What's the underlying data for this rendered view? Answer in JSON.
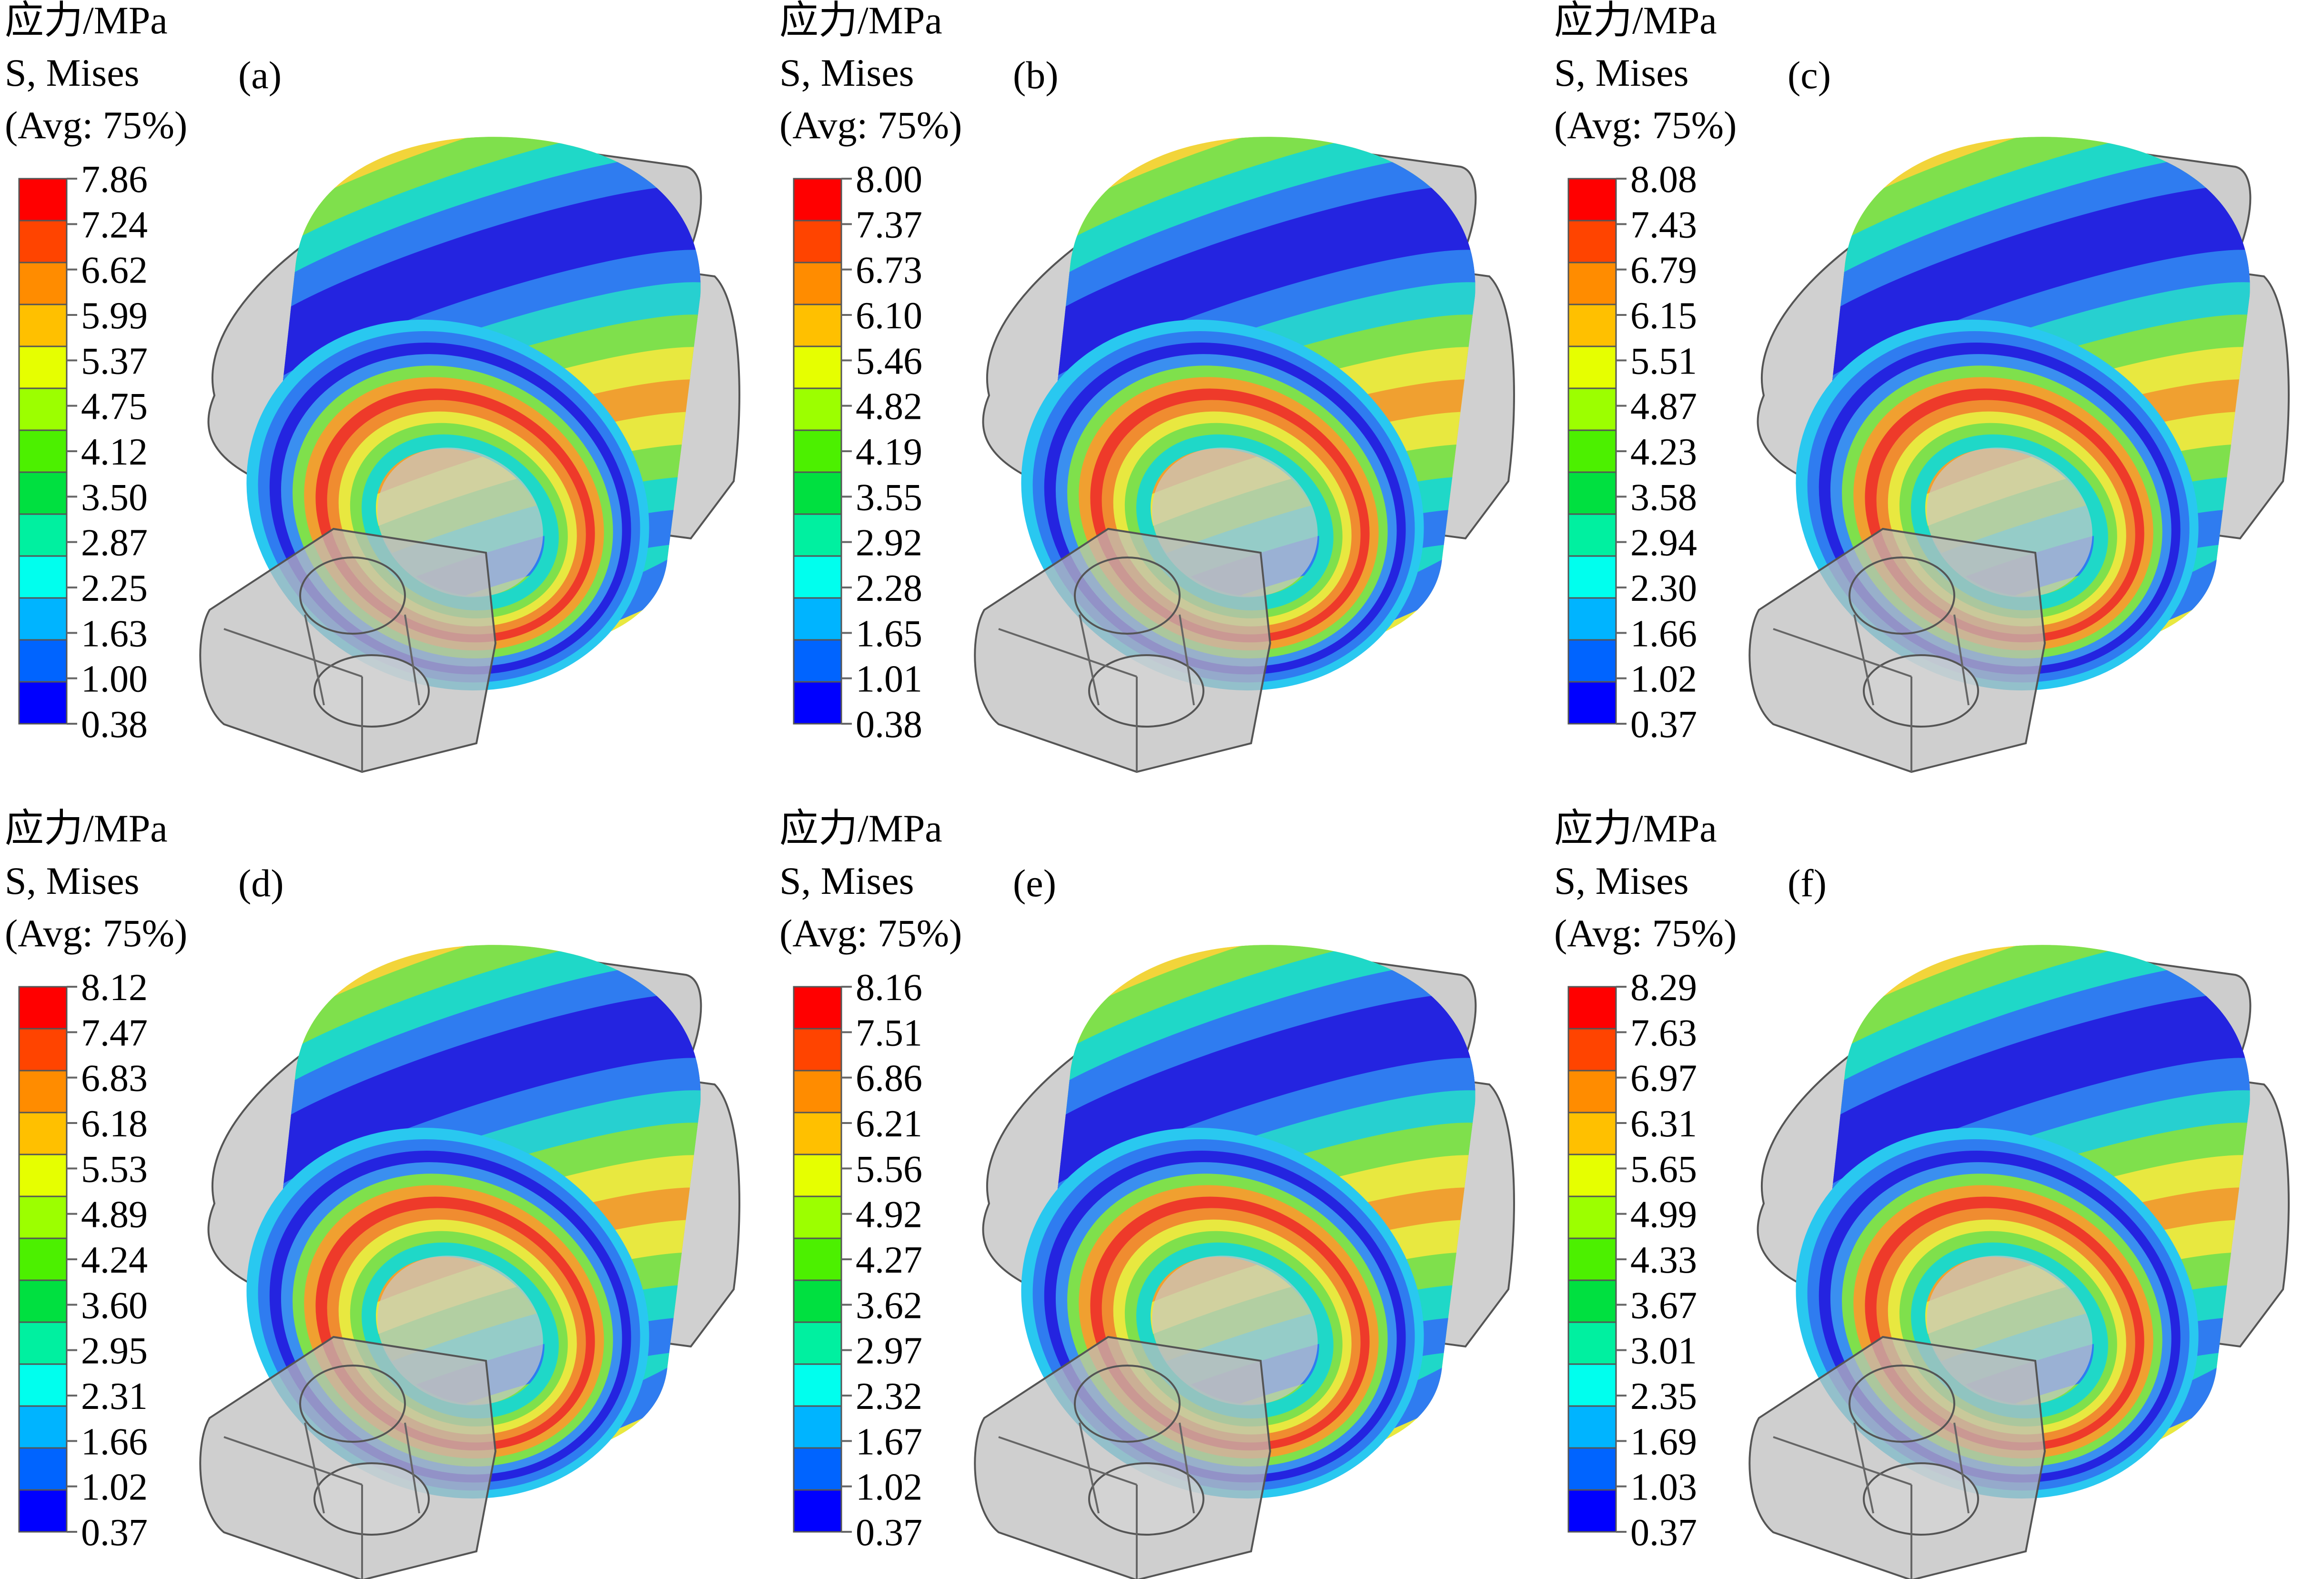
{
  "figure": {
    "panels": [
      {
        "id": "a",
        "tag": "(a)",
        "header": "应力/MPa",
        "stress": "S, Mises",
        "avg": "(Avg: 75%)",
        "ticks": [
          "7.86",
          "7.24",
          "6.62",
          "5.99",
          "5.37",
          "4.75",
          "4.12",
          "3.50",
          "2.87",
          "2.25",
          "1.63",
          "1.00",
          "0.38"
        ]
      },
      {
        "id": "b",
        "tag": "(b)",
        "header": "应力/MPa",
        "stress": "S, Mises",
        "avg": "(Avg: 75%)",
        "ticks": [
          "8.00",
          "7.37",
          "6.73",
          "6.10",
          "5.46",
          "4.82",
          "4.19",
          "3.55",
          "2.92",
          "2.28",
          "1.65",
          "1.01",
          "0.38"
        ]
      },
      {
        "id": "c",
        "tag": "(c)",
        "header": "应力/MPa",
        "stress": "S, Mises",
        "avg": "(Avg: 75%)",
        "ticks": [
          "8.08",
          "7.43",
          "6.79",
          "6.15",
          "5.51",
          "4.87",
          "4.23",
          "3.58",
          "2.94",
          "2.30",
          "1.66",
          "1.02",
          "0.37"
        ]
      },
      {
        "id": "d",
        "tag": "(d)",
        "header": "应力/MPa",
        "stress": "S, Mises",
        "avg": "(Avg: 75%)",
        "ticks": [
          "8.12",
          "7.47",
          "6.83",
          "6.18",
          "5.53",
          "4.89",
          "4.24",
          "3.60",
          "2.95",
          "2.31",
          "1.66",
          "1.02",
          "0.37"
        ]
      },
      {
        "id": "e",
        "tag": "(e)",
        "header": "应力/MPa",
        "stress": "S, Mises",
        "avg": "(Avg: 75%)",
        "ticks": [
          "8.16",
          "7.51",
          "6.86",
          "6.21",
          "5.56",
          "4.92",
          "4.27",
          "3.62",
          "2.97",
          "2.32",
          "1.67",
          "1.02",
          "0.37"
        ]
      },
      {
        "id": "f",
        "tag": "(f)",
        "header": "应力/MPa",
        "stress": "S, Mises",
        "avg": "(Avg: 75%)",
        "ticks": [
          "8.29",
          "7.63",
          "6.97",
          "6.31",
          "5.65",
          "4.99",
          "4.33",
          "3.67",
          "3.01",
          "2.35",
          "1.69",
          "1.03",
          "0.37"
        ]
      }
    ],
    "legend_colors": [
      "#ff0000",
      "#ff4400",
      "#ff8c00",
      "#ffc000",
      "#e6ff00",
      "#9cff00",
      "#4cf000",
      "#00e040",
      "#00f0a0",
      "#00ffee",
      "#00b4ff",
      "#0064ff",
      "#0000ff"
    ],
    "ring_colors": [
      "#f2d43a",
      "#7fe04c",
      "#1fd8c8",
      "#2f7cf0",
      "#2424e0",
      "#2424e0",
      "#2f7cf0",
      "#27d0d0",
      "#7fe04c",
      "#e8e840",
      "#f0a030",
      "#e8e840",
      "#7fe04c",
      "#1fd8c8",
      "#2f7cf0"
    ],
    "inner_colors": [
      "#29c8f0",
      "#2f7cf0",
      "#2424e0",
      "#3a8ff0",
      "#7fe04c",
      "#f0a030",
      "#ee3a2a",
      "#f08c30",
      "#e8e840",
      "#7fe04c",
      "#1fd8c8"
    ],
    "housing_color": "#bcbcbc"
  }
}
